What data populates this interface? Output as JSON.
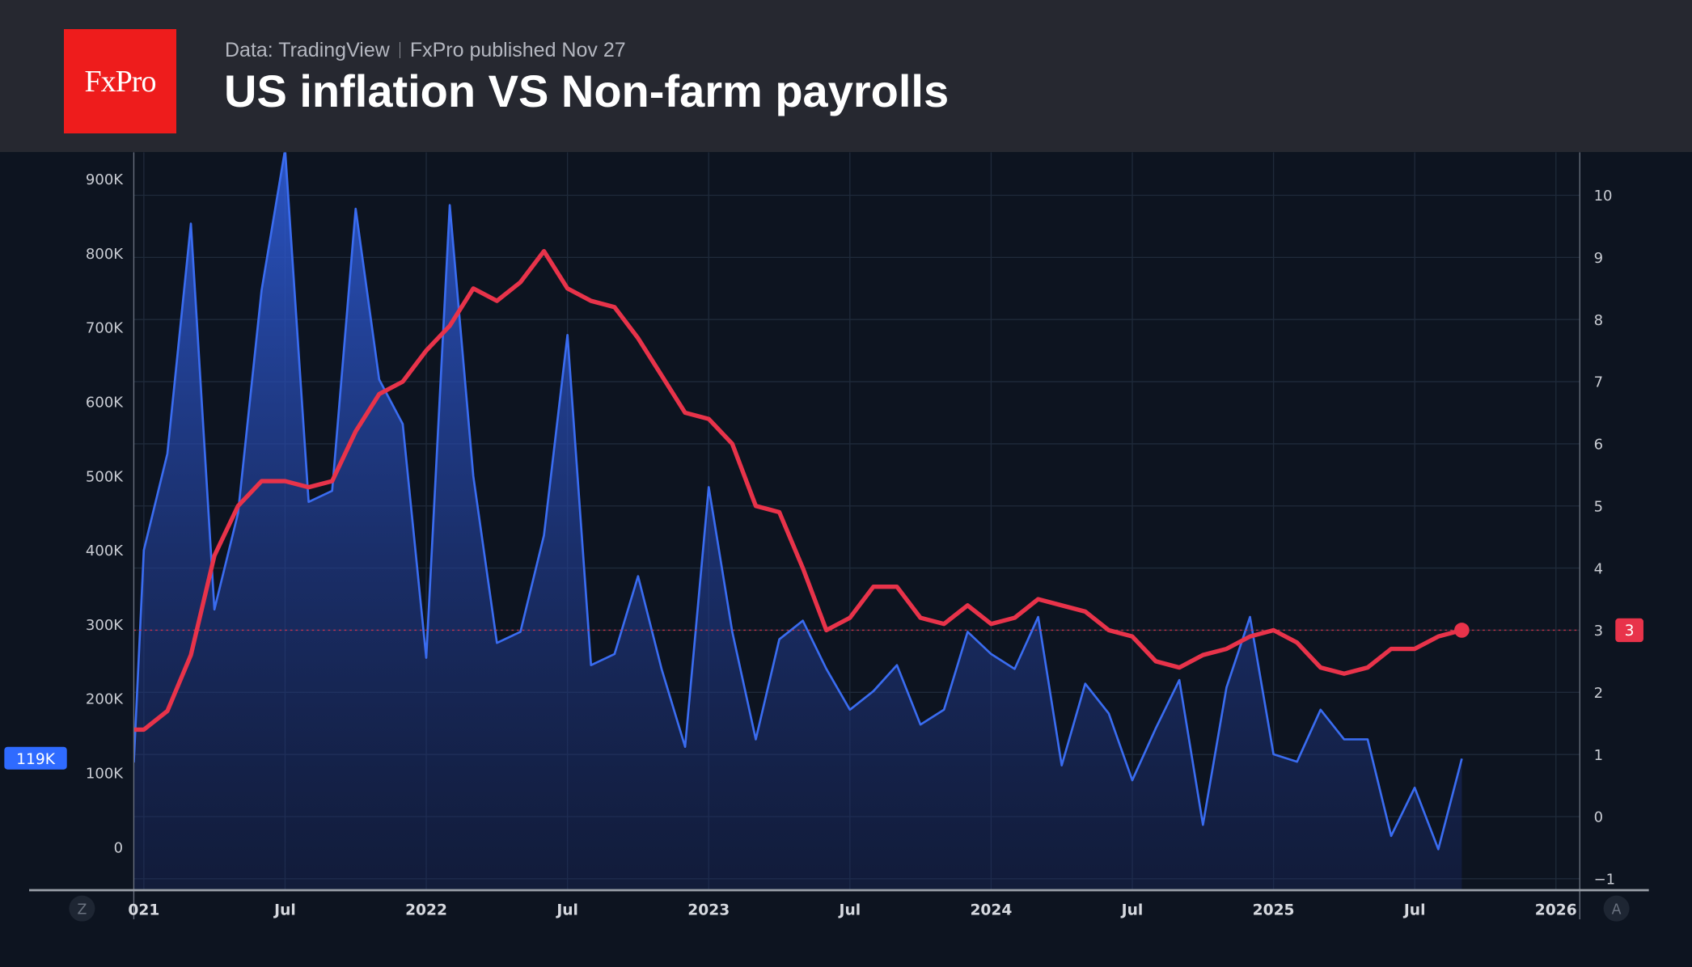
{
  "header": {
    "logo_text": "FxPro",
    "source": "Data: TradingView",
    "published": "FxPro published Nov 27",
    "title": "US inflation VS Non-farm payrolls"
  },
  "controls": {
    "left_button": "Z",
    "right_button": "A"
  },
  "colors": {
    "nfp": "#3a6cf0",
    "cpi": "#e8334a",
    "background": "#0d1420",
    "header": "#262830"
  },
  "chart_data": [
    {
      "type": "area",
      "series_name": "Non-farm payrolls",
      "axis": "left",
      "start_month": "2020-12",
      "values_k": [
        -270,
        400,
        530,
        840,
        320,
        450,
        750,
        940,
        465,
        480,
        860,
        630,
        570,
        255,
        865,
        500,
        275,
        290,
        420,
        690,
        245,
        260,
        365,
        240,
        135,
        485,
        290,
        145,
        280,
        305,
        240,
        185,
        210,
        245,
        165,
        185,
        290,
        260,
        240,
        310,
        110,
        220,
        180,
        90,
        160,
        225,
        30,
        215,
        310,
        125,
        115,
        185,
        145,
        145,
        15,
        80,
        -3,
        119
      ],
      "last_value_label": "119K",
      "ylim": [
        -58,
        940
      ],
      "yticks": [
        0,
        100,
        200,
        300,
        400,
        500,
        600,
        700,
        800,
        900
      ],
      "ytick_labels": [
        "0",
        "100K",
        "200K",
        "300K",
        "400K",
        "500K",
        "600K",
        "700K",
        "800K",
        "900K"
      ]
    },
    {
      "type": "line",
      "series_name": "US inflation (CPI YoY, %)",
      "axis": "right",
      "start_month": "2020-12",
      "values": [
        1.4,
        1.4,
        1.7,
        2.6,
        4.2,
        5.0,
        5.4,
        5.4,
        5.3,
        5.4,
        6.2,
        6.8,
        7.0,
        7.5,
        7.9,
        8.5,
        8.3,
        8.6,
        9.1,
        8.5,
        8.3,
        8.2,
        7.7,
        7.1,
        6.5,
        6.4,
        6.0,
        5.0,
        4.9,
        4.0,
        3.0,
        3.2,
        3.7,
        3.7,
        3.2,
        3.1,
        3.4,
        3.1,
        3.2,
        3.5,
        3.4,
        3.3,
        3.0,
        2.9,
        2.5,
        2.4,
        2.6,
        2.7,
        2.9,
        3.0,
        2.8,
        2.4,
        2.3,
        2.4,
        2.7,
        2.7,
        2.9,
        3.0
      ],
      "last_value_label": "3",
      "ylim": [
        -1.2,
        10.8
      ],
      "yticks": [
        -1,
        0,
        1,
        2,
        3,
        4,
        5,
        6,
        7,
        8,
        9,
        10
      ],
      "ytick_labels": [
        "−1",
        "0",
        "1",
        "2",
        "3",
        "4",
        "5",
        "6",
        "7",
        "8",
        "9",
        "10"
      ]
    }
  ],
  "xaxis": {
    "ticks": [
      {
        "month_index": 1,
        "label": "021"
      },
      {
        "month_index": 7,
        "label": "Jul"
      },
      {
        "month_index": 13,
        "label": "2022"
      },
      {
        "month_index": 19,
        "label": "Jul"
      },
      {
        "month_index": 25,
        "label": "2023"
      },
      {
        "month_index": 31,
        "label": "Jul"
      },
      {
        "month_index": 37,
        "label": "2024"
      },
      {
        "month_index": 43,
        "label": "Jul"
      },
      {
        "month_index": 49,
        "label": "2025"
      },
      {
        "month_index": 55,
        "label": "Jul"
      },
      {
        "month_index": 61,
        "label": "2026"
      }
    ]
  }
}
